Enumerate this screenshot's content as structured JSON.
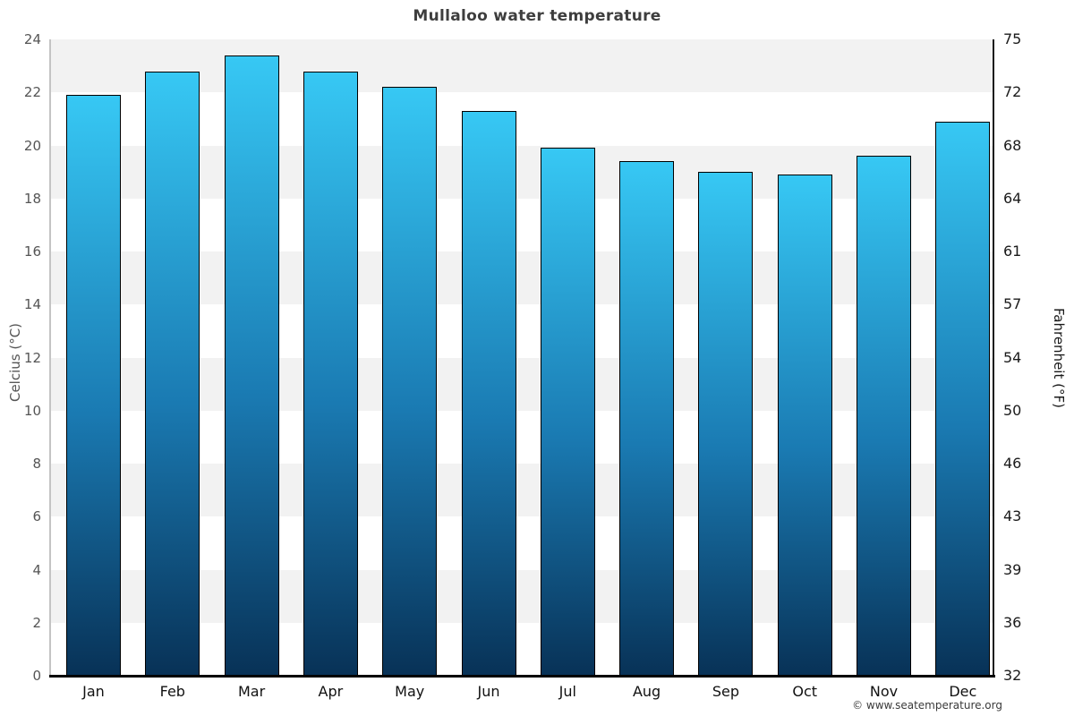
{
  "title": "Mullaloo water temperature",
  "copyright": "© www.seatemperature.org",
  "chart_data": {
    "type": "bar",
    "title": "Mullaloo water temperature",
    "categories": [
      "Jan",
      "Feb",
      "Mar",
      "Apr",
      "May",
      "Jun",
      "Jul",
      "Aug",
      "Sep",
      "Oct",
      "Nov",
      "Dec"
    ],
    "values": [
      21.9,
      22.8,
      23.4,
      22.8,
      22.2,
      21.3,
      19.9,
      19.4,
      19.0,
      18.9,
      19.6,
      20.9
    ],
    "unit": "°C",
    "ylabel_left": "Celcius (°C)",
    "ylabel_right": "Fahrenheit (°F)",
    "ylim": [
      0,
      24
    ],
    "yticks_celsius": [
      24,
      22,
      20,
      18,
      16,
      14,
      12,
      10,
      8,
      6,
      4,
      2,
      0
    ],
    "yticks_fahrenheit": [
      75,
      72,
      68,
      64,
      61,
      57,
      54,
      50,
      46,
      43,
      39,
      36,
      32
    ],
    "grid": "alternating horizontal bands, gray/white per 2°C",
    "legend": "none",
    "colors": {
      "bar_gradient_top": "#37c8f4",
      "bar_gradient_mid": "#1a7ab2",
      "bar_gradient_bottom": "#083257",
      "bar_border": "#000000",
      "band_gray": "#f2f2f2",
      "band_white": "#ffffff",
      "axis_left_line": "#c4c4c4",
      "axis_right_line": "#1a1a1a",
      "axis_bottom_line": "#000000",
      "title_text": "#3e3e3e",
      "left_tick_text": "#555555",
      "right_tick_text": "#1a1a1a",
      "month_text": "#111111",
      "copyright_text": "#3a3a3a"
    }
  }
}
